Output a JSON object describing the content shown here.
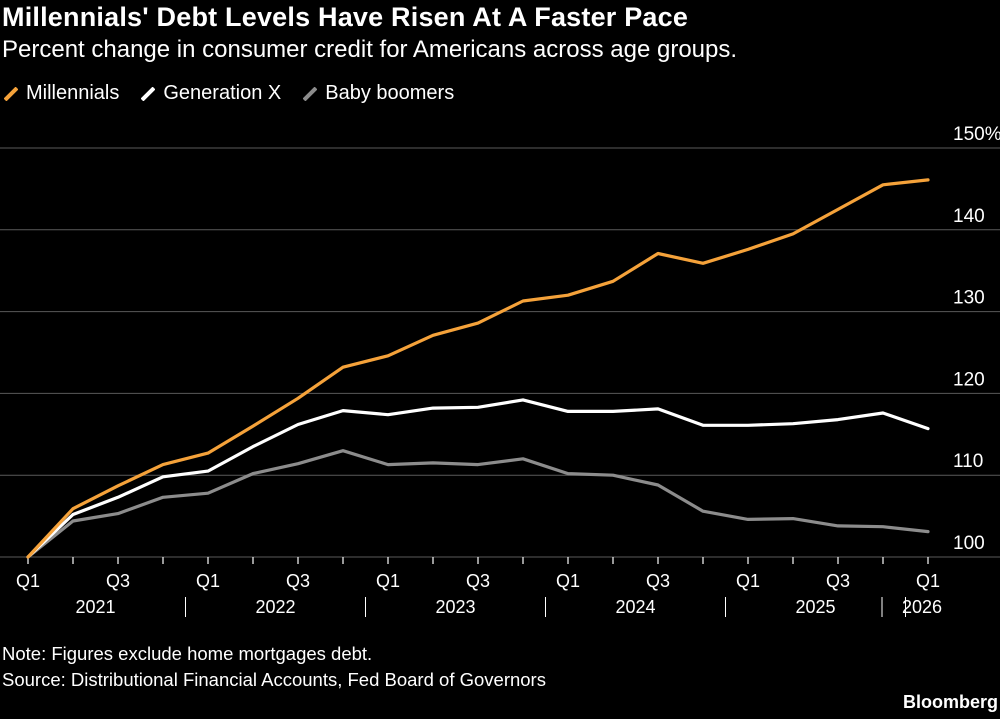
{
  "header": {
    "title": "Millennials' Debt Levels Have Risen At A Faster Pace",
    "subtitle": "Percent change in consumer credit for Americans across age groups."
  },
  "legend": {
    "items": [
      {
        "label": "Millennials",
        "color": "#f5a23a"
      },
      {
        "label": "Generation X",
        "color": "#ffffff"
      },
      {
        "label": "Baby boomers",
        "color": "#8c8c8c"
      }
    ]
  },
  "footer": {
    "note": "Note: Figures exclude home mortgages debt.",
    "source": "Source: Distributional Financial Accounts, Fed Board of Governors",
    "brand": "Bloomberg"
  },
  "chart_data": {
    "type": "line",
    "ylim": [
      100,
      150
    ],
    "y_ticks": [
      "100",
      "110",
      "120",
      "130",
      "140",
      "150%"
    ],
    "x_tick_labels": [
      "Q1",
      "Q3",
      "Q1",
      "Q3",
      "Q1",
      "Q3",
      "Q1",
      "Q3",
      "Q1",
      "Q3",
      "Q1"
    ],
    "years": [
      "2021",
      "2022",
      "2023",
      "2024",
      "2025",
      "2026"
    ],
    "x": [
      "2021 Q1",
      "2021 Q2",
      "2021 Q3",
      "2021 Q4",
      "2022 Q1",
      "2022 Q2",
      "2022 Q3",
      "2022 Q4",
      "2023 Q1",
      "2023 Q2",
      "2023 Q3",
      "2023 Q4",
      "2024 Q1",
      "2024 Q2",
      "2024 Q3",
      "2024 Q4",
      "2025 Q1",
      "2025 Q2",
      "2025 Q3",
      "2025 Q4",
      "2026 Q1"
    ],
    "grid": true,
    "series": [
      {
        "name": "Millennials",
        "color": "#f5a23a",
        "values": [
          100,
          105.9,
          108.7,
          111.3,
          112.7,
          116.0,
          119.4,
          123.2,
          124.6,
          127.1,
          128.6,
          131.3,
          132.0,
          133.7,
          137.1,
          135.9,
          137.6,
          139.5,
          142.5,
          145.5,
          146.1
        ]
      },
      {
        "name": "Generation X",
        "color": "#ffffff",
        "values": [
          100,
          105.2,
          107.3,
          109.8,
          110.5,
          113.5,
          116.2,
          117.9,
          117.4,
          118.2,
          118.3,
          119.2,
          117.8,
          117.8,
          118.1,
          116.1,
          116.1,
          116.3,
          116.8,
          117.6,
          115.7
        ]
      },
      {
        "name": "Baby boomers",
        "color": "#8c8c8c",
        "values": [
          100,
          104.4,
          105.3,
          107.3,
          107.8,
          110.2,
          111.4,
          113.0,
          111.3,
          111.5,
          111.3,
          112.0,
          110.2,
          110.0,
          108.8,
          105.6,
          104.6,
          104.7,
          103.8,
          103.7,
          103.1
        ]
      }
    ]
  }
}
